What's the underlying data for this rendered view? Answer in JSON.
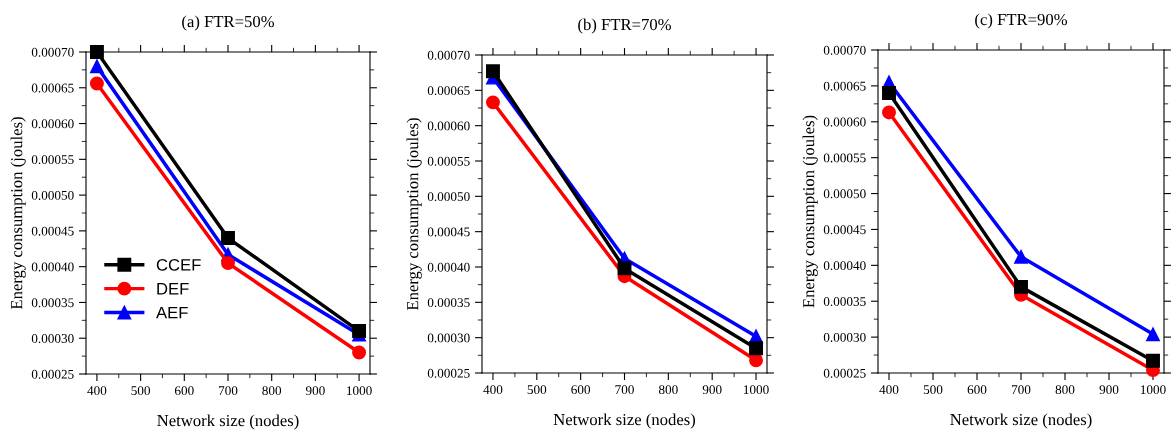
{
  "chart_data": [
    {
      "type": "line",
      "title": "(a) FTR=50%",
      "xlabel": "Network size (nodes)",
      "ylabel": "Energy consumption (joules)",
      "x": [
        400,
        700,
        1000
      ],
      "series": [
        {
          "name": "CCEF",
          "color": "#000000",
          "marker": "square",
          "values": [
            0.0007,
            0.00044,
            0.00031
          ]
        },
        {
          "name": "DEF",
          "color": "#ff0000",
          "marker": "circle",
          "values": [
            0.000656,
            0.000405,
            0.00028
          ]
        },
        {
          "name": "AEF",
          "color": "#0000ff",
          "marker": "triangle",
          "values": [
            0.00068,
            0.000417,
            0.000305
          ]
        }
      ],
      "xlim": [
        375,
        1025
      ],
      "xticks": [
        400,
        500,
        600,
        700,
        800,
        900,
        1000
      ],
      "ylim": [
        0.00025,
        0.0007
      ],
      "yticks": [
        {
          "value": 0.00025,
          "label": "0.00025"
        },
        {
          "value": 0.0003,
          "label": "0.00030"
        },
        {
          "value": 0.00035,
          "label": "0.00035"
        },
        {
          "value": 0.0004,
          "label": "0.00040"
        },
        {
          "value": 0.00045,
          "label": "0.00045"
        },
        {
          "value": 0.0005,
          "label": "0.00050"
        },
        {
          "value": 0.00055,
          "label": "0.00055"
        },
        {
          "value": 0.0006,
          "label": "0.00060"
        },
        {
          "value": 0.00065,
          "label": "0.00065"
        },
        {
          "value": 0.0007,
          "label": "0.00070"
        }
      ],
      "legend": "lower left",
      "grid": false,
      "line_style": "solid"
    },
    {
      "type": "line",
      "title": "(b) FTR=70%",
      "xlabel": "Network size (nodes)",
      "ylabel": "Energy consumption (joules)",
      "x": [
        400,
        700,
        1000
      ],
      "series": [
        {
          "color": "#000000",
          "marker": "square",
          "values": [
            0.000677,
            0.000398,
            0.000285
          ]
        },
        {
          "color": "#ff0000",
          "marker": "circle",
          "values": [
            0.000633,
            0.000387,
            0.000268
          ]
        },
        {
          "color": "#0000ff",
          "marker": "triangle",
          "values": [
            0.000668,
            0.000412,
            0.000302
          ]
        }
      ],
      "xlim": [
        375,
        1025
      ],
      "xticks": [
        400,
        500,
        600,
        700,
        800,
        900,
        1000
      ],
      "ylim": [
        0.00025,
        0.0007
      ],
      "yticks": [
        {
          "value": 0.00025,
          "label": "0.00025"
        },
        {
          "value": 0.0003,
          "label": "0.00030"
        },
        {
          "value": 0.00035,
          "label": "0.00035"
        },
        {
          "value": 0.0004,
          "label": "0.00040"
        },
        {
          "value": 0.00045,
          "label": "0.00045"
        },
        {
          "value": 0.0005,
          "label": "0.00050"
        },
        {
          "value": 0.00055,
          "label": "0.00055"
        },
        {
          "value": 0.0006,
          "label": "0.00060"
        },
        {
          "value": 0.00065,
          "label": "0.00065"
        },
        {
          "value": 0.0007,
          "label": "0.00070"
        }
      ],
      "grid": false,
      "line_style": "solid"
    },
    {
      "type": "line",
      "title": "(c) FTR=90%",
      "xlabel": "Network size (nodes)",
      "ylabel": "Energy consumption (joules)",
      "x": [
        400,
        700,
        1000
      ],
      "series": [
        {
          "color": "#000000",
          "marker": "square",
          "values": [
            0.00064,
            0.00037,
            0.000267
          ]
        },
        {
          "color": "#ff0000",
          "marker": "circle",
          "values": [
            0.000613,
            0.000359,
            0.000254
          ]
        },
        {
          "color": "#0000ff",
          "marker": "triangle",
          "values": [
            0.000655,
            0.000412,
            0.000304
          ]
        }
      ],
      "xlim": [
        375,
        1025
      ],
      "xticks": [
        400,
        500,
        600,
        700,
        800,
        900,
        1000
      ],
      "ylim": [
        0.00025,
        0.0007
      ],
      "yticks": [
        {
          "value": 0.00025,
          "label": "0.00025"
        },
        {
          "value": 0.0003,
          "label": "0.00030"
        },
        {
          "value": 0.00035,
          "label": "0.00035"
        },
        {
          "value": 0.0004,
          "label": "0.00040"
        },
        {
          "value": 0.00045,
          "label": "0.00045"
        },
        {
          "value": 0.0005,
          "label": "0.00050"
        },
        {
          "value": 0.00055,
          "label": "0.00055"
        },
        {
          "value": 0.0006,
          "label": "0.00060"
        },
        {
          "value": 0.00065,
          "label": "0.00065"
        },
        {
          "value": 0.0007,
          "label": "0.00070"
        }
      ],
      "grid": false,
      "line_style": "solid"
    }
  ]
}
